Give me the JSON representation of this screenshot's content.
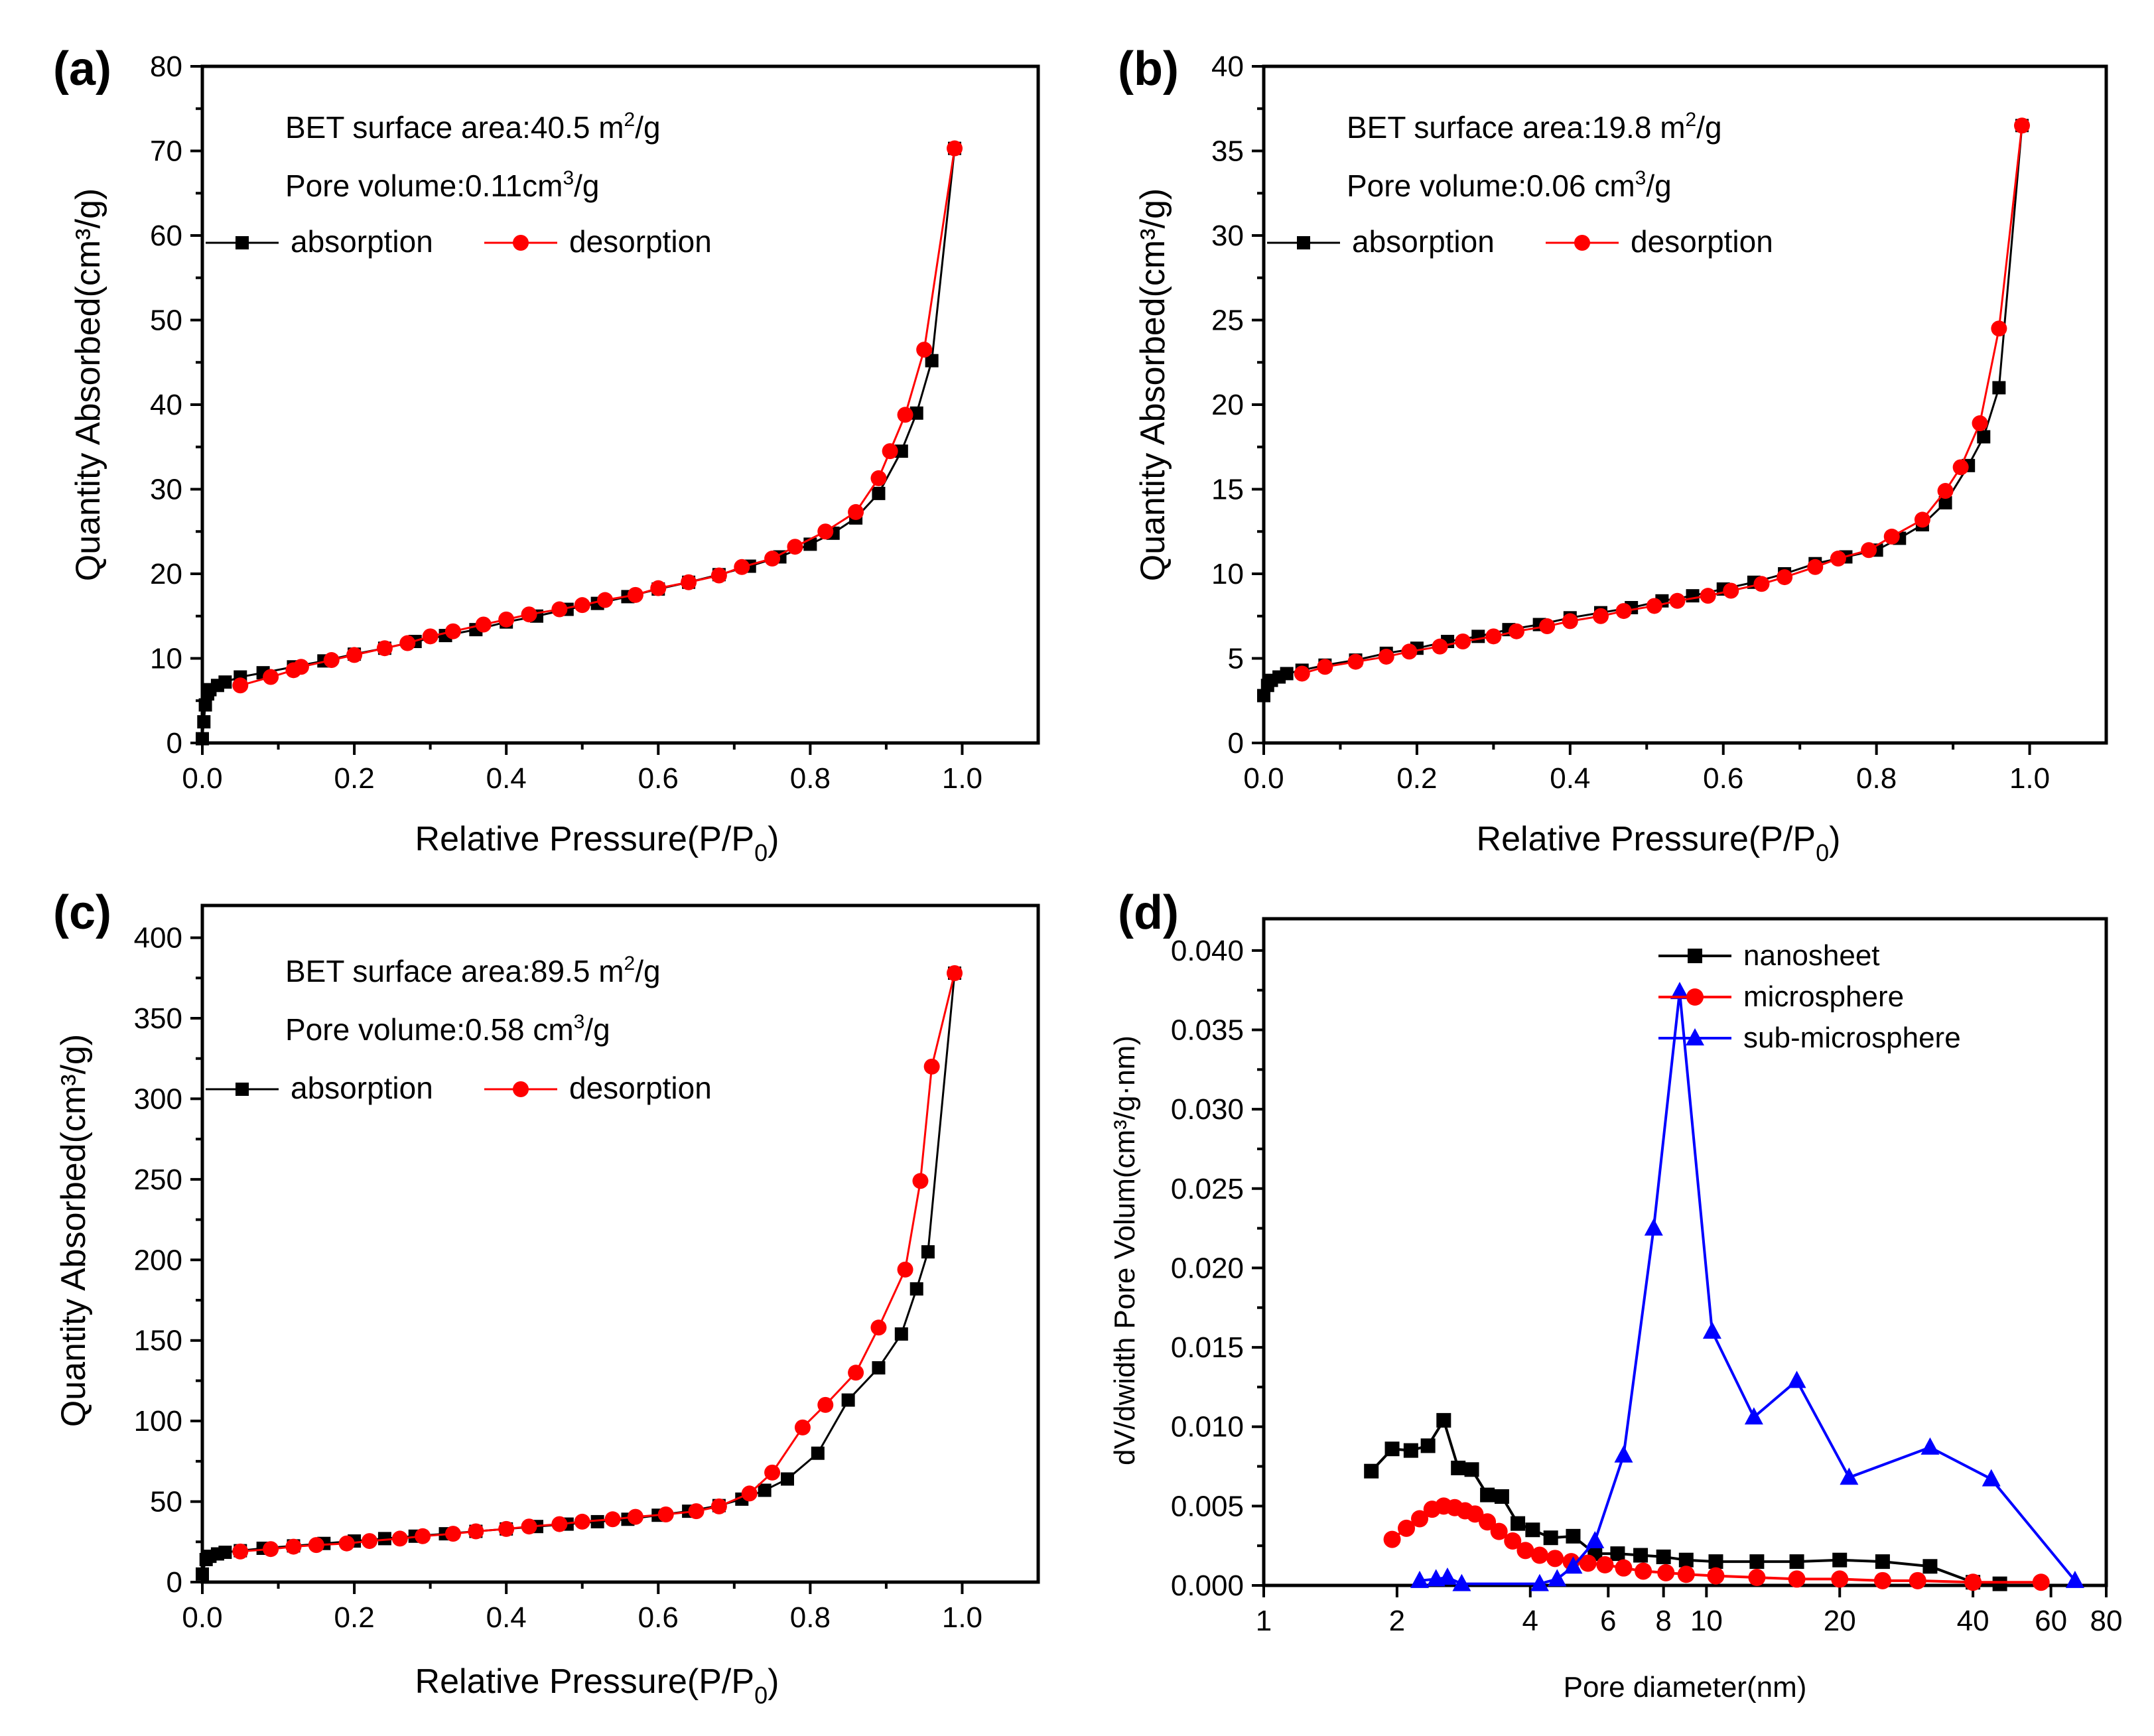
{
  "figure": {
    "panels": [
      "(a)",
      "(b)",
      "(c)",
      "(d)"
    ]
  },
  "colors": {
    "absorption": "#000000",
    "desorption": "#ff0000",
    "nanosheet": "#000000",
    "microsphere": "#ff0000",
    "sub_microsphere": "#0000ff"
  },
  "chart_data": [
    {
      "panel": "(a)",
      "type": "line",
      "xlabel_main": "Relative Pressure(P/P",
      "xlabel_sub": "0",
      "xlabel_end": ")",
      "ylabel": "Quantity Absorbed(cm³/g)",
      "xlim": [
        0,
        1.1
      ],
      "ylim": [
        0,
        80
      ],
      "xticks": [
        0,
        0.2,
        0.4,
        0.6,
        0.8,
        1.0
      ],
      "xtick_labels": [
        "0.0",
        "0.2",
        "0.4",
        "0.6",
        "0.8",
        "1.0"
      ],
      "yticks": [
        0,
        10,
        20,
        30,
        40,
        50,
        60,
        70,
        80
      ],
      "ytick_labels": [
        "0",
        "10",
        "20",
        "30",
        "40",
        "50",
        "60",
        "70",
        "80"
      ],
      "annotations": [
        {
          "main": "BET surface area:40.5 m",
          "sup": "2",
          "end": "/g"
        },
        {
          "main": "Pore volume:0.11cm",
          "sup": "3",
          "end": "/g"
        }
      ],
      "legend": [
        "absorption",
        "desorption"
      ],
      "series": [
        {
          "name": "absorption",
          "marker": "square",
          "x": [
            0.0,
            0.002,
            0.004,
            0.007,
            0.01,
            0.02,
            0.03,
            0.05,
            0.08,
            0.12,
            0.16,
            0.2,
            0.24,
            0.28,
            0.32,
            0.36,
            0.4,
            0.44,
            0.48,
            0.52,
            0.56,
            0.6,
            0.64,
            0.68,
            0.72,
            0.76,
            0.8,
            0.83,
            0.86,
            0.89,
            0.92,
            0.94,
            0.96,
            0.99
          ],
          "y": [
            0.5,
            2.5,
            4.5,
            5.8,
            6.3,
            6.8,
            7.2,
            7.8,
            8.3,
            9.0,
            9.7,
            10.5,
            11.2,
            12.0,
            12.7,
            13.4,
            14.3,
            15.0,
            15.8,
            16.5,
            17.3,
            18.2,
            19.0,
            19.9,
            20.9,
            22.0,
            23.5,
            24.8,
            26.6,
            29.5,
            34.5,
            39.0,
            45.2,
            70.3
          ]
        },
        {
          "name": "desorption",
          "marker": "circle",
          "x": [
            0.99,
            0.95,
            0.925,
            0.905,
            0.89,
            0.86,
            0.82,
            0.78,
            0.75,
            0.71,
            0.68,
            0.64,
            0.6,
            0.57,
            0.53,
            0.5,
            0.47,
            0.43,
            0.4,
            0.37,
            0.33,
            0.3,
            0.27,
            0.24,
            0.2,
            0.17,
            0.13,
            0.12,
            0.09,
            0.05
          ],
          "y": [
            70.3,
            46.5,
            38.8,
            34.5,
            31.3,
            27.3,
            25.0,
            23.2,
            21.8,
            20.8,
            19.8,
            19.0,
            18.3,
            17.5,
            16.9,
            16.3,
            15.8,
            15.2,
            14.6,
            14.0,
            13.2,
            12.6,
            11.8,
            11.2,
            10.4,
            9.8,
            9.0,
            8.6,
            7.8,
            6.8
          ]
        }
      ]
    },
    {
      "panel": "(b)",
      "type": "line",
      "xlabel_main": "Relative Pressure(P/P",
      "xlabel_sub": "0",
      "xlabel_end": ")",
      "ylabel": "Quantity Absorbed(cm³/g)",
      "xlim": [
        0,
        1.1
      ],
      "ylim": [
        0,
        40
      ],
      "xticks": [
        0,
        0.2,
        0.4,
        0.6,
        0.8,
        1.0
      ],
      "xtick_labels": [
        "0.0",
        "0.2",
        "0.4",
        "0.6",
        "0.8",
        "1.0"
      ],
      "yticks": [
        0,
        5,
        10,
        15,
        20,
        25,
        30,
        35,
        40
      ],
      "ytick_labels": [
        "0",
        "5",
        "10",
        "15",
        "20",
        "25",
        "30",
        "35",
        "40"
      ],
      "annotations": [
        {
          "main": "BET surface area:19.8 m",
          "sup": "2",
          "end": "/g"
        },
        {
          "main": "Pore volume:0.06 cm",
          "sup": "3",
          "end": "/g"
        }
      ],
      "legend": [
        "absorption",
        "desorption"
      ],
      "series": [
        {
          "name": "absorption",
          "marker": "square",
          "x": [
            0.0,
            0.005,
            0.01,
            0.02,
            0.03,
            0.05,
            0.08,
            0.12,
            0.16,
            0.2,
            0.24,
            0.28,
            0.32,
            0.36,
            0.4,
            0.44,
            0.48,
            0.52,
            0.56,
            0.6,
            0.64,
            0.68,
            0.72,
            0.76,
            0.8,
            0.83,
            0.86,
            0.89,
            0.92,
            0.94,
            0.96,
            0.99
          ],
          "y": [
            2.8,
            3.4,
            3.7,
            3.9,
            4.1,
            4.3,
            4.6,
            4.9,
            5.3,
            5.6,
            6.0,
            6.3,
            6.7,
            7.0,
            7.4,
            7.7,
            8.0,
            8.4,
            8.7,
            9.1,
            9.5,
            10.0,
            10.6,
            11.0,
            11.4,
            12.1,
            12.9,
            14.2,
            16.4,
            18.1,
            21.0,
            36.5
          ]
        },
        {
          "name": "desorption",
          "marker": "circle",
          "x": [
            0.99,
            0.96,
            0.935,
            0.91,
            0.89,
            0.86,
            0.82,
            0.79,
            0.75,
            0.72,
            0.68,
            0.65,
            0.61,
            0.58,
            0.54,
            0.51,
            0.47,
            0.44,
            0.4,
            0.37,
            0.33,
            0.3,
            0.26,
            0.23,
            0.19,
            0.16,
            0.12,
            0.08,
            0.05
          ],
          "y": [
            36.5,
            24.5,
            18.9,
            16.3,
            14.9,
            13.2,
            12.2,
            11.4,
            10.9,
            10.4,
            9.8,
            9.4,
            9.0,
            8.7,
            8.4,
            8.1,
            7.8,
            7.5,
            7.2,
            6.9,
            6.6,
            6.3,
            6.0,
            5.7,
            5.4,
            5.1,
            4.8,
            4.5,
            4.1
          ]
        }
      ]
    },
    {
      "panel": "(c)",
      "type": "line",
      "xlabel_main": "Relative Pressure(P/P",
      "xlabel_sub": "0",
      "xlabel_end": ")",
      "ylabel": "Quantity Absorbed(cm³/g)",
      "xlim": [
        0,
        1.1
      ],
      "ylim": [
        0,
        420
      ],
      "xticks": [
        0,
        0.2,
        0.4,
        0.6,
        0.8,
        1.0
      ],
      "xtick_labels": [
        "0.0",
        "0.2",
        "0.4",
        "0.6",
        "0.8",
        "1.0"
      ],
      "yticks": [
        0,
        50,
        100,
        150,
        200,
        250,
        300,
        350,
        400
      ],
      "ytick_labels": [
        "0",
        "50",
        "100",
        "150",
        "200",
        "250",
        "300",
        "350",
        "400"
      ],
      "annotations": [
        {
          "main": "BET surface area:89.5 m",
          "sup": "2",
          "end": "/g"
        },
        {
          "main": "Pore volume:0.58 cm",
          "sup": "3",
          "end": "/g"
        }
      ],
      "legend": [
        "absorption",
        "desorption"
      ],
      "series": [
        {
          "name": "absorption",
          "marker": "square",
          "x": [
            0.0,
            0.005,
            0.01,
            0.02,
            0.03,
            0.05,
            0.08,
            0.12,
            0.16,
            0.2,
            0.24,
            0.28,
            0.32,
            0.36,
            0.4,
            0.44,
            0.48,
            0.52,
            0.56,
            0.6,
            0.64,
            0.68,
            0.71,
            0.74,
            0.77,
            0.81,
            0.85,
            0.89,
            0.92,
            0.94,
            0.955,
            0.99
          ],
          "y": [
            5,
            14,
            16,
            17.5,
            18.5,
            19.5,
            21,
            22.5,
            24,
            25.5,
            27,
            28.5,
            30,
            31.5,
            33,
            34.5,
            36,
            37.5,
            39,
            41.5,
            44,
            47.5,
            51.5,
            57,
            64,
            80,
            113,
            133,
            154,
            182,
            205,
            378
          ]
        },
        {
          "name": "desorption",
          "marker": "circle",
          "x": [
            0.99,
            0.96,
            0.945,
            0.925,
            0.89,
            0.86,
            0.82,
            0.79,
            0.75,
            0.72,
            0.68,
            0.65,
            0.61,
            0.57,
            0.54,
            0.5,
            0.47,
            0.43,
            0.4,
            0.36,
            0.33,
            0.29,
            0.26,
            0.22,
            0.19,
            0.15,
            0.12,
            0.09,
            0.05
          ],
          "y": [
            378,
            320,
            249,
            194,
            158,
            130,
            110,
            96,
            68,
            55,
            47,
            44,
            42,
            40.5,
            39,
            37.5,
            36,
            34.5,
            33,
            31.5,
            30,
            28.5,
            27,
            25.5,
            24,
            23,
            22,
            20.5,
            19
          ]
        }
      ]
    },
    {
      "panel": "(d)",
      "type": "line",
      "xscale": "log",
      "xlabel": "Pore diameter(nm)",
      "ylabel": "dV/dwidth Pore Volum(cm³/g·nm)",
      "xlim": [
        1,
        80
      ],
      "ylim": [
        0,
        0.042
      ],
      "xticks": [
        1,
        2,
        4,
        6,
        8,
        10,
        20,
        40,
        60,
        80
      ],
      "xtick_labels": [
        "1",
        "2",
        "4",
        "6",
        "8",
        "10",
        "20",
        "40",
        "60",
        "80"
      ],
      "yticks": [
        0,
        0.005,
        0.01,
        0.015,
        0.02,
        0.025,
        0.03,
        0.035,
        0.04
      ],
      "ytick_labels": [
        "0.000",
        "0.005",
        "0.010",
        "0.015",
        "0.020",
        "0.025",
        "0.030",
        "0.035",
        "0.040"
      ],
      "legend": [
        "nanosheet",
        "microsphere",
        "sub-microsphere"
      ],
      "series": [
        {
          "name": "nanosheet",
          "marker": "square",
          "x": [
            1.75,
            1.95,
            2.15,
            2.35,
            2.55,
            2.75,
            2.95,
            3.2,
            3.45,
            3.75,
            4.05,
            4.45,
            5.0,
            5.6,
            6.3,
            7.1,
            8.0,
            9.0,
            10.5,
            13.0,
            16.0,
            20.0,
            25.0,
            32.0,
            40.0,
            46.0
          ],
          "y": [
            0.0072,
            0.0086,
            0.0085,
            0.0088,
            0.0104,
            0.0074,
            0.0073,
            0.0057,
            0.0056,
            0.0039,
            0.0035,
            0.003,
            0.0031,
            0.002,
            0.002,
            0.0019,
            0.0018,
            0.0016,
            0.0015,
            0.0015,
            0.0015,
            0.0016,
            0.0015,
            0.0012,
            0.0002,
            0.0001
          ]
        },
        {
          "name": "microsphere",
          "marker": "circle",
          "x": [
            1.95,
            2.1,
            2.25,
            2.4,
            2.55,
            2.7,
            2.85,
            3.0,
            3.2,
            3.4,
            3.65,
            3.9,
            4.2,
            4.55,
            4.95,
            5.4,
            5.9,
            6.5,
            7.2,
            8.1,
            9.0,
            10.5,
            13.0,
            16.0,
            20.0,
            25.0,
            30.0,
            40.0,
            57.0
          ],
          "y": [
            0.0029,
            0.0036,
            0.0042,
            0.0048,
            0.005,
            0.0049,
            0.0047,
            0.0045,
            0.004,
            0.0034,
            0.0028,
            0.0022,
            0.0019,
            0.0017,
            0.0015,
            0.0014,
            0.0013,
            0.0011,
            0.0009,
            0.0008,
            0.0007,
            0.0006,
            0.0005,
            0.0004,
            0.0004,
            0.0003,
            0.0003,
            0.0002,
            0.0002
          ]
        },
        {
          "name": "sub-microsphere",
          "marker": "triangle",
          "x": [
            2.25,
            2.45,
            2.6,
            2.8,
            4.2,
            4.6,
            5.0,
            5.6,
            6.5,
            7.6,
            8.7,
            10.3,
            12.8,
            16.0,
            21.0,
            32.0,
            44.0,
            68.0
          ],
          "y": [
            0.0003,
            0.0004,
            0.0005,
            0.0001,
            0.0001,
            0.0004,
            0.0012,
            0.0028,
            0.0082,
            0.0225,
            0.0374,
            0.016,
            0.0106,
            0.0129,
            0.0068,
            0.0087,
            0.0067,
            0.0003
          ]
        }
      ]
    }
  ]
}
